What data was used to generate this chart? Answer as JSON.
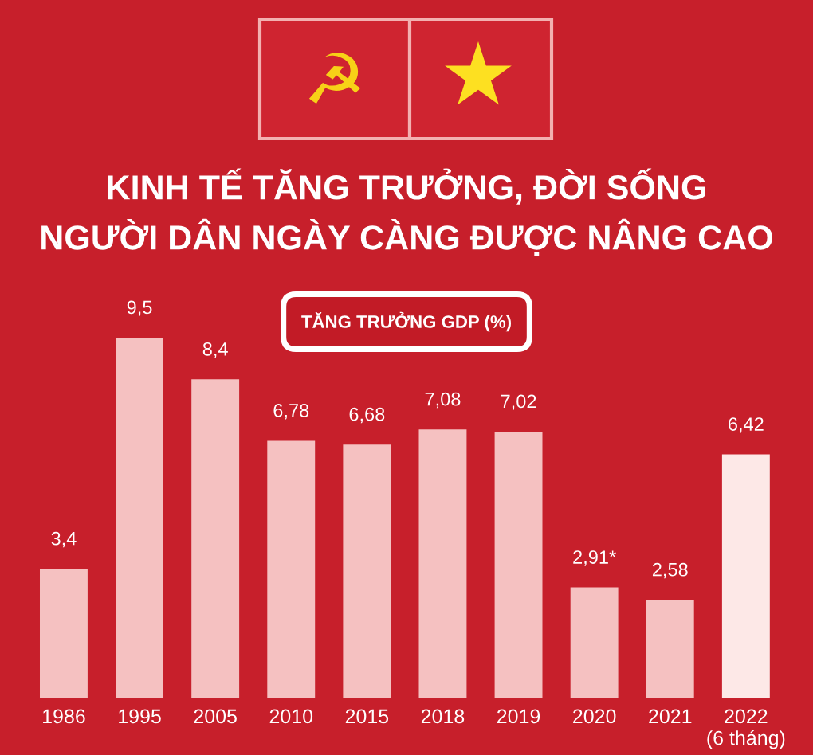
{
  "chart_data": {
    "type": "bar",
    "title": "KINH TẾ TĂNG TRƯỞNG, ĐỜI SỐNG\nNGƯỜI DÂN NGÀY CÀNG ĐƯỢC NÂNG CAO",
    "subtitle": "TĂNG TRƯỞNG GDP (%)",
    "categories": [
      "1986",
      "1995",
      "2005",
      "2010",
      "2015",
      "2018",
      "2019",
      "2020",
      "2021",
      "2022\n(6 tháng)"
    ],
    "values": [
      3.4,
      9.5,
      8.4,
      6.78,
      6.68,
      7.08,
      7.02,
      2.91,
      2.58,
      6.42
    ],
    "value_labels": [
      "3,4",
      "9,5",
      "8,4",
      "6,78",
      "6,68",
      "7,08",
      "7,02",
      "2,91*",
      "2,58",
      "6,42"
    ],
    "colors": [
      "#f5c1c1",
      "#f5c1c1",
      "#f5c1c1",
      "#f5c1c1",
      "#f5c1c1",
      "#f5c1c1",
      "#f5c1c1",
      "#f5c1c1",
      "#f5c1c1",
      "#fde8e7"
    ]
  }
}
